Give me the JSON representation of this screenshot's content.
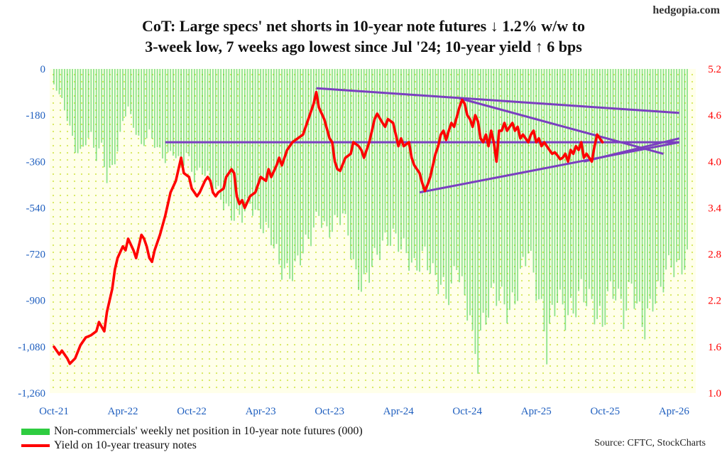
{
  "site": "hedgopia.com",
  "title_line1": "CoT: Large specs' net shorts in 10-year note futures ↓ 1.2% w/w to",
  "title_line2": "3-week low, 7 weeks ago lowest since Jul '24; 10-year yield ↑ 6 bps",
  "source": "Source: CFTC, StockCharts",
  "chart_data": {
    "type": "bar+line",
    "x_ticks": [
      "Oct-21",
      "Apr-22",
      "Oct-22",
      "Apr-23",
      "Oct-23",
      "Apr-24",
      "Oct-24",
      "Apr-25",
      "Oct-25",
      "Apr-26"
    ],
    "x_tick_index": [
      0,
      26,
      52,
      78,
      104,
      130,
      156,
      182,
      208,
      234
    ],
    "left_axis": {
      "min": -1260,
      "max": 0,
      "ticks": [
        "0",
        "-180",
        "-360",
        "-540",
        "-720",
        "-900",
        "-1,080",
        "-1,260"
      ],
      "color": "#1f5fbf"
    },
    "right_axis": {
      "min": 1.0,
      "max": 5.2,
      "ticks": [
        "5.2",
        "4.6",
        "4.0",
        "3.4",
        "2.8",
        "2.2",
        "1.6",
        "1.0"
      ],
      "color": "#ff0000"
    },
    "series": [
      {
        "name": "Non-commercials' weekly net position in 10-year note futures (000)",
        "type": "bar",
        "axis": "left",
        "color": "#2ecc40",
        "points": [
          [
            0,
            -60
          ],
          [
            3,
            -120
          ],
          [
            6,
            -230
          ],
          [
            8,
            -310
          ],
          [
            10,
            -330
          ],
          [
            12,
            -280
          ],
          [
            14,
            -260
          ],
          [
            16,
            -340
          ],
          [
            18,
            -300
          ],
          [
            20,
            -430
          ],
          [
            22,
            -380
          ],
          [
            24,
            -320
          ],
          [
            26,
            -200
          ],
          [
            28,
            -150
          ],
          [
            30,
            -220
          ],
          [
            33,
            -300
          ],
          [
            36,
            -250
          ],
          [
            39,
            -310
          ],
          [
            42,
            -350
          ],
          [
            45,
            -320
          ],
          [
            48,
            -380
          ],
          [
            50,
            -330
          ],
          [
            53,
            -420
          ],
          [
            56,
            -390
          ],
          [
            60,
            -450
          ],
          [
            63,
            -500
          ],
          [
            66,
            -560
          ],
          [
            70,
            -580
          ],
          [
            74,
            -520
          ],
          [
            78,
            -600
          ],
          [
            82,
            -650
          ],
          [
            85,
            -760
          ],
          [
            88,
            -800
          ],
          [
            91,
            -780
          ],
          [
            94,
            -700
          ],
          [
            97,
            -650
          ],
          [
            100,
            -560
          ],
          [
            103,
            -640
          ],
          [
            106,
            -600
          ],
          [
            109,
            -560
          ],
          [
            111,
            -640
          ],
          [
            114,
            -820
          ],
          [
            117,
            -840
          ],
          [
            120,
            -760
          ],
          [
            124,
            -680
          ],
          [
            128,
            -650
          ],
          [
            132,
            -700
          ],
          [
            136,
            -780
          ],
          [
            140,
            -720
          ],
          [
            143,
            -800
          ],
          [
            146,
            -840
          ],
          [
            148,
            -880
          ],
          [
            150,
            -860
          ],
          [
            152,
            -750
          ],
          [
            155,
            -900
          ],
          [
            157,
            -950
          ],
          [
            158,
            -1080
          ],
          [
            160,
            -1120
          ],
          [
            161,
            -1040
          ],
          [
            163,
            -960
          ],
          [
            166,
            -860
          ],
          [
            169,
            -900
          ],
          [
            172,
            -950
          ],
          [
            175,
            -860
          ],
          [
            177,
            -760
          ],
          [
            179,
            -700
          ],
          [
            181,
            -800
          ],
          [
            183,
            -900
          ],
          [
            185,
            -1000
          ],
          [
            186,
            -1090
          ],
          [
            188,
            -960
          ],
          [
            190,
            -880
          ],
          [
            193,
            -960
          ],
          [
            196,
            -940
          ],
          [
            199,
            -860
          ],
          [
            202,
            -900
          ],
          [
            205,
            -960
          ],
          [
            207,
            -1000
          ],
          [
            209,
            -880
          ],
          [
            212,
            -860
          ],
          [
            215,
            -960
          ],
          [
            218,
            -840
          ],
          [
            221,
            -960
          ],
          [
            223,
            -1000
          ],
          [
            226,
            -900
          ],
          [
            229,
            -860
          ],
          [
            231,
            -780
          ],
          [
            233,
            -760
          ],
          [
            236,
            -780
          ],
          [
            239,
            -740
          ]
        ]
      },
      {
        "name": "Yield on 10-year treasury notes",
        "type": "line",
        "axis": "right",
        "color": "#ff0000",
        "points": [
          [
            0,
            1.6
          ],
          [
            2,
            1.5
          ],
          [
            3,
            1.55
          ],
          [
            5,
            1.45
          ],
          [
            6,
            1.38
          ],
          [
            8,
            1.45
          ],
          [
            10,
            1.62
          ],
          [
            12,
            1.72
          ],
          [
            14,
            1.75
          ],
          [
            16,
            1.8
          ],
          [
            17,
            1.92
          ],
          [
            19,
            1.8
          ],
          [
            20,
            2.05
          ],
          [
            22,
            2.35
          ],
          [
            23,
            2.6
          ],
          [
            24,
            2.75
          ],
          [
            26,
            2.9
          ],
          [
            27,
            2.85
          ],
          [
            28,
            3.0
          ],
          [
            30,
            2.85
          ],
          [
            31,
            2.75
          ],
          [
            32,
            2.9
          ],
          [
            33,
            3.05
          ],
          [
            34,
            3.0
          ],
          [
            35,
            2.9
          ],
          [
            36,
            2.75
          ],
          [
            37,
            2.7
          ],
          [
            38,
            2.85
          ],
          [
            40,
            3.05
          ],
          [
            42,
            3.3
          ],
          [
            44,
            3.6
          ],
          [
            46,
            3.75
          ],
          [
            47,
            3.9
          ],
          [
            48,
            4.05
          ],
          [
            49,
            3.85
          ],
          [
            51,
            3.8
          ],
          [
            52,
            3.65
          ],
          [
            54,
            3.55
          ],
          [
            55,
            3.6
          ],
          [
            57,
            3.75
          ],
          [
            58,
            3.8
          ],
          [
            59,
            3.75
          ],
          [
            60,
            3.6
          ],
          [
            61,
            3.55
          ],
          [
            62,
            3.6
          ],
          [
            64,
            3.65
          ],
          [
            65,
            3.8
          ],
          [
            67,
            3.9
          ],
          [
            68,
            3.85
          ],
          [
            69,
            3.55
          ],
          [
            70,
            3.45
          ],
          [
            71,
            3.5
          ],
          [
            72,
            3.4
          ],
          [
            74,
            3.55
          ],
          [
            76,
            3.6
          ],
          [
            77,
            3.7
          ],
          [
            78,
            3.8
          ],
          [
            80,
            3.75
          ],
          [
            81,
            3.9
          ],
          [
            82,
            3.8
          ],
          [
            84,
            3.95
          ],
          [
            85,
            4.05
          ],
          [
            86,
            3.95
          ],
          [
            88,
            4.15
          ],
          [
            90,
            4.25
          ],
          [
            92,
            4.3
          ],
          [
            94,
            4.35
          ],
          [
            96,
            4.55
          ],
          [
            98,
            4.75
          ],
          [
            99,
            4.9
          ],
          [
            100,
            4.7
          ],
          [
            102,
            4.55
          ],
          [
            104,
            4.3
          ],
          [
            105,
            4.25
          ],
          [
            106,
            4.0
          ],
          [
            107,
            3.9
          ],
          [
            108,
            3.88
          ],
          [
            110,
            4.05
          ],
          [
            112,
            4.1
          ],
          [
            113,
            4.25
          ],
          [
            115,
            4.2
          ],
          [
            116,
            4.15
          ],
          [
            117,
            4.05
          ],
          [
            119,
            4.25
          ],
          [
            120,
            4.4
          ],
          [
            121,
            4.55
          ],
          [
            122,
            4.62
          ],
          [
            124,
            4.5
          ],
          [
            125,
            4.45
          ],
          [
            126,
            4.55
          ],
          [
            128,
            4.5
          ],
          [
            129,
            4.35
          ],
          [
            130,
            4.2
          ],
          [
            131,
            4.3
          ],
          [
            132,
            4.2
          ],
          [
            134,
            4.25
          ],
          [
            135,
            4.05
          ],
          [
            136,
            3.95
          ],
          [
            137,
            3.9
          ],
          [
            138,
            3.85
          ],
          [
            139,
            3.72
          ],
          [
            140,
            3.62
          ],
          [
            141,
            3.7
          ],
          [
            142,
            3.8
          ],
          [
            143,
            3.95
          ],
          [
            144,
            4.1
          ],
          [
            145,
            4.2
          ],
          [
            146,
            4.35
          ],
          [
            147,
            4.4
          ],
          [
            148,
            4.28
          ],
          [
            149,
            4.4
          ],
          [
            150,
            4.5
          ],
          [
            151,
            4.45
          ],
          [
            153,
            4.7
          ],
          [
            154,
            4.8
          ],
          [
            155,
            4.75
          ],
          [
            156,
            4.6
          ],
          [
            157,
            4.55
          ],
          [
            158,
            4.45
          ],
          [
            159,
            4.6
          ],
          [
            160,
            4.52
          ],
          [
            161,
            4.3
          ],
          [
            162,
            4.25
          ],
          [
            163,
            4.35
          ],
          [
            164,
            4.2
          ],
          [
            165,
            4.4
          ],
          [
            166,
            4.25
          ],
          [
            167,
            4.0
          ],
          [
            168,
            4.4
          ],
          [
            169,
            4.4
          ],
          [
            170,
            4.5
          ],
          [
            171,
            4.4
          ],
          [
            172,
            4.45
          ],
          [
            173,
            4.5
          ],
          [
            174,
            4.4
          ],
          [
            175,
            4.45
          ],
          [
            176,
            4.3
          ],
          [
            177,
            4.35
          ],
          [
            178,
            4.3
          ],
          [
            179,
            4.25
          ],
          [
            180,
            4.35
          ],
          [
            181,
            4.4
          ],
          [
            182,
            4.25
          ],
          [
            183,
            4.3
          ],
          [
            184,
            4.2
          ],
          [
            185,
            4.25
          ],
          [
            186,
            4.2
          ],
          [
            187,
            4.15
          ],
          [
            188,
            4.1
          ],
          [
            189,
            4.12
          ],
          [
            190,
            4.08
          ],
          [
            191,
            4.03
          ],
          [
            192,
            4.05
          ],
          [
            193,
            4.1
          ],
          [
            194,
            4.0
          ],
          [
            195,
            4.15
          ],
          [
            196,
            4.1
          ],
          [
            197,
            4.2
          ],
          [
            198,
            4.15
          ],
          [
            199,
            4.25
          ],
          [
            200,
            4.05
          ],
          [
            201,
            4.1
          ],
          [
            202,
            4.05
          ],
          [
            203,
            4.0
          ],
          [
            204,
            4.2
          ],
          [
            205,
            4.35
          ],
          [
            206,
            4.3
          ],
          [
            207,
            4.25
          ]
        ]
      }
    ],
    "trendlines": [
      {
        "from": [
          42,
          4.25
        ],
        "to": [
          236,
          4.25
        ]
      },
      {
        "from": [
          99,
          4.95
        ],
        "to": [
          236,
          4.63
        ]
      },
      {
        "from": [
          138,
          3.6
        ],
        "to": [
          236,
          4.25
        ]
      },
      {
        "from": [
          153,
          4.82
        ],
        "to": [
          230,
          4.1
        ]
      },
      {
        "from": [
          200,
          4.0
        ],
        "to": [
          236,
          4.3
        ]
      }
    ]
  }
}
